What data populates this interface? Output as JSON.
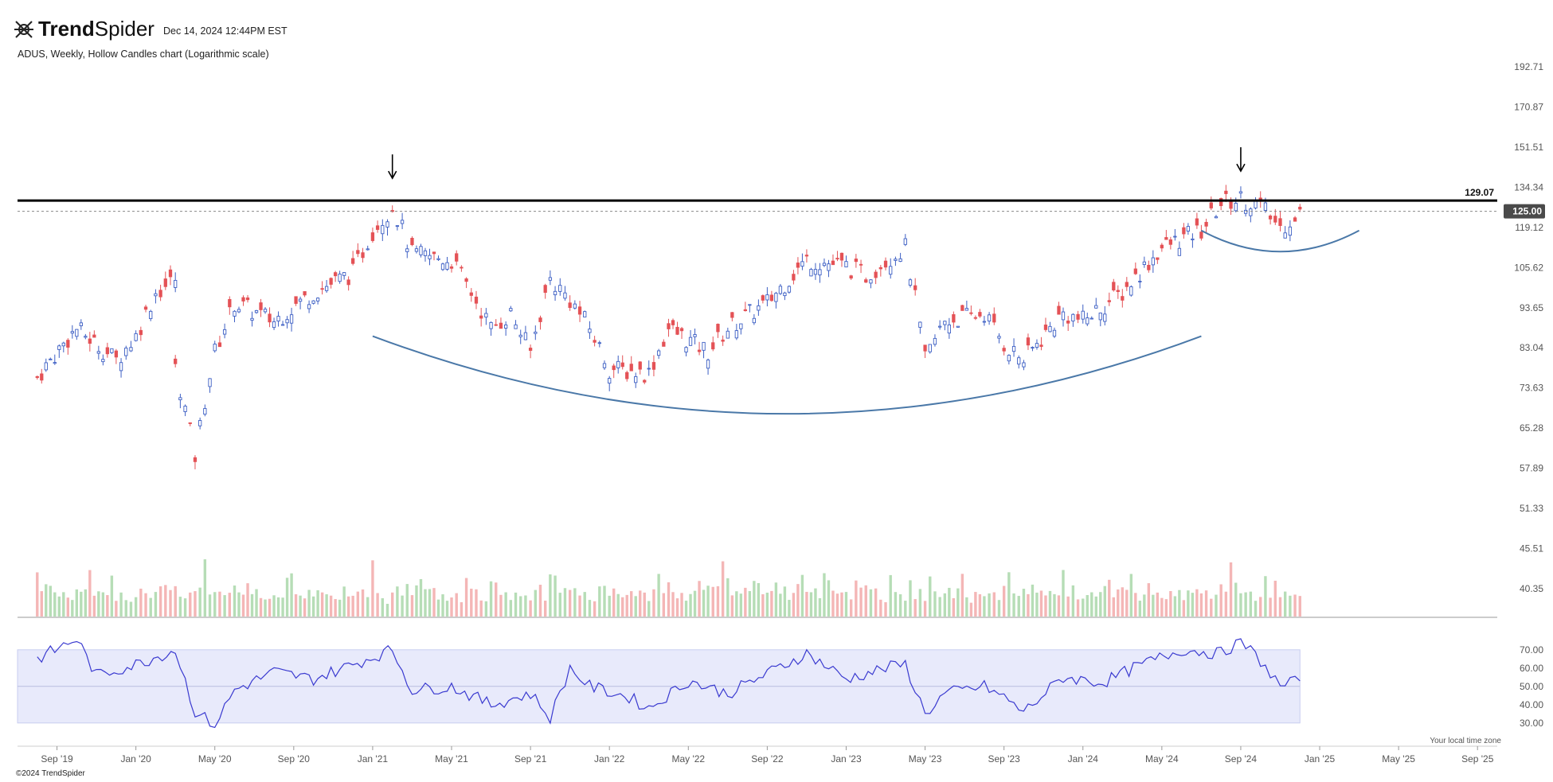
{
  "header": {
    "brand_bold": "Trend",
    "brand_light": "Spider",
    "timestamp": "Dec 14, 2024 12:44PM EST",
    "subtitle": "ADUS, Weekly, Hollow Candles chart (Logarithmic scale)"
  },
  "footer": {
    "copyright": "©2024 TrendSpider",
    "timezone_note": "Your local time zone"
  },
  "colors": {
    "up": "#3d5fc4",
    "down": "#e45256",
    "vol_up": "#b6ddb6",
    "vol_down": "#f4b6b6",
    "rsi_line": "#3a3ad0",
    "rsi_band": "#e8eafb",
    "arc": "#4a78a8"
  },
  "chart_data": [
    {
      "type": "candlestick",
      "ticker": "ADUS",
      "interval": "Weekly",
      "scale": "log",
      "ylim": [
        40.35,
        192.71
      ],
      "y_ticks": [
        "192.71",
        "170.87",
        "151.51",
        "134.34",
        "119.12",
        "105.62",
        "93.65",
        "83.04",
        "73.63",
        "65.28",
        "57.89",
        "51.33",
        "45.51",
        "40.35"
      ],
      "x_ticks": [
        "Sep '19",
        "Jan '20",
        "May '20",
        "Sep '20",
        "Jan '21",
        "May '21",
        "Sep '21",
        "Jan '22",
        "May '22",
        "Sep '22",
        "Jan '23",
        "May '23",
        "Sep '23",
        "Jan '24",
        "May '24",
        "Sep '24",
        "Jan '25",
        "May '25",
        "Sep '25"
      ],
      "x_range": [
        "2019-07",
        "2025-10"
      ],
      "resistance_level": 129.07,
      "resistance_label": "129.07",
      "last_price": 125.0,
      "last_price_label": "125.00",
      "close_path": [
        [
          "2019-08",
          76
        ],
        [
          "2019-10",
          88
        ],
        [
          "2019-12",
          80
        ],
        [
          "2020-01",
          86
        ],
        [
          "2020-02",
          98
        ],
        [
          "2020-03",
          102
        ],
        [
          "2020-03",
          78
        ],
        [
          "2020-04",
          60
        ],
        [
          "2020-05",
          82
        ],
        [
          "2020-06",
          95
        ],
        [
          "2020-08",
          90
        ],
        [
          "2020-10",
          98
        ],
        [
          "2020-12",
          104
        ],
        [
          "2021-01",
          118
        ],
        [
          "2021-02",
          127
        ],
        [
          "2021-03",
          110
        ],
        [
          "2021-05",
          108
        ],
        [
          "2021-06",
          98
        ],
        [
          "2021-07",
          88
        ],
        [
          "2021-08",
          92
        ],
        [
          "2021-09",
          82
        ],
        [
          "2021-10",
          102
        ],
        [
          "2021-11",
          96
        ],
        [
          "2021-12",
          88
        ],
        [
          "2022-01",
          78
        ],
        [
          "2022-03",
          77
        ],
        [
          "2022-04",
          88
        ],
        [
          "2022-06",
          82
        ],
        [
          "2022-07",
          88
        ],
        [
          "2022-09",
          95
        ],
        [
          "2022-11",
          108
        ],
        [
          "2023-01",
          106
        ],
        [
          "2023-02",
          103
        ],
        [
          "2023-03",
          108
        ],
        [
          "2023-04",
          112
        ],
        [
          "2023-05",
          80
        ],
        [
          "2023-06",
          90
        ],
        [
          "2023-08",
          92
        ],
        [
          "2023-09",
          84
        ],
        [
          "2023-10",
          80
        ],
        [
          "2023-12",
          92
        ],
        [
          "2024-01",
          90
        ],
        [
          "2024-03",
          98
        ],
        [
          "2024-05",
          112
        ],
        [
          "2024-07",
          118
        ],
        [
          "2024-08",
          128
        ],
        [
          "2024-09",
          130
        ],
        [
          "2024-10",
          127
        ],
        [
          "2024-11",
          119
        ],
        [
          "2024-12",
          125
        ]
      ],
      "annotations": [
        {
          "kind": "arrow-down",
          "at": "2021-02"
        },
        {
          "kind": "arrow-down",
          "at": "2024-09"
        },
        {
          "kind": "cup-arc",
          "from": "2021-01",
          "to": "2024-07"
        },
        {
          "kind": "handle-arc",
          "from": "2024-07",
          "to": "2025-03"
        }
      ]
    },
    {
      "type": "bar",
      "name": "Volume",
      "values_relative": [
        0.2,
        0.6,
        0.9,
        0.3,
        0.5,
        0.4,
        0.8,
        0.3,
        0.5,
        0.4,
        0.3,
        0.6,
        0.9,
        0.5,
        0.4,
        0.7,
        0.3,
        1.0,
        0.6,
        0.4,
        0.3,
        0.5
      ]
    },
    {
      "type": "line",
      "name": "RSI",
      "y_ticks": [
        "70.00",
        "60.00",
        "50.00",
        "40.00",
        "30.00"
      ],
      "ylim": [
        30,
        70
      ],
      "band": [
        30,
        70
      ],
      "midline": 50,
      "series": [
        [
          "2019-08",
          65
        ],
        [
          "2019-10",
          76
        ],
        [
          "2019-11",
          56
        ],
        [
          "2020-01",
          62
        ],
        [
          "2020-03",
          70
        ],
        [
          "2020-04",
          36
        ],
        [
          "2020-05",
          29
        ],
        [
          "2020-06",
          48
        ],
        [
          "2020-08",
          58
        ],
        [
          "2020-10",
          54
        ],
        [
          "2020-12",
          62
        ],
        [
          "2021-02",
          70
        ],
        [
          "2021-03",
          48
        ],
        [
          "2021-05",
          50
        ],
        [
          "2021-07",
          40
        ],
        [
          "2021-09",
          46
        ],
        [
          "2021-10",
          33
        ],
        [
          "2021-11",
          60
        ],
        [
          "2021-12",
          50
        ],
        [
          "2022-02",
          44
        ],
        [
          "2022-03",
          38
        ],
        [
          "2022-05",
          53
        ],
        [
          "2022-07",
          46
        ],
        [
          "2022-09",
          57
        ],
        [
          "2022-11",
          68
        ],
        [
          "2023-01",
          54
        ],
        [
          "2023-03",
          60
        ],
        [
          "2023-04",
          62
        ],
        [
          "2023-05",
          35
        ],
        [
          "2023-06",
          46
        ],
        [
          "2023-08",
          50
        ],
        [
          "2023-09",
          44
        ],
        [
          "2023-10",
          36
        ],
        [
          "2023-12",
          55
        ],
        [
          "2024-02",
          52
        ],
        [
          "2024-04",
          62
        ],
        [
          "2024-06",
          70
        ],
        [
          "2024-08",
          68
        ],
        [
          "2024-09",
          75
        ],
        [
          "2024-10",
          64
        ],
        [
          "2024-11",
          50
        ],
        [
          "2024-12",
          53
        ]
      ]
    }
  ]
}
